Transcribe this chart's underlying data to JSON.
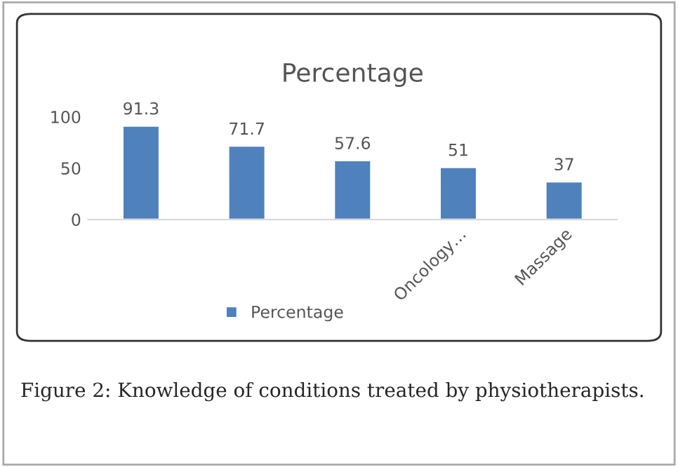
{
  "chart_data": {
    "type": "bar",
    "title": "Percentage",
    "categories": [
      null,
      null,
      null,
      "Oncology…",
      "Massage"
    ],
    "series": [
      {
        "name": "Percentage",
        "color": "#4f81bd",
        "values": [
          91.3,
          71.7,
          57.6,
          51,
          37
        ]
      }
    ],
    "ylim": [
      0,
      100
    ],
    "yticks": [
      0,
      50,
      100
    ],
    "data_labels": true,
    "grid": false,
    "legend": "bottom",
    "annotations": [
      "Figure 2: Knowledge of conditions treated by physiotherapists."
    ]
  }
}
